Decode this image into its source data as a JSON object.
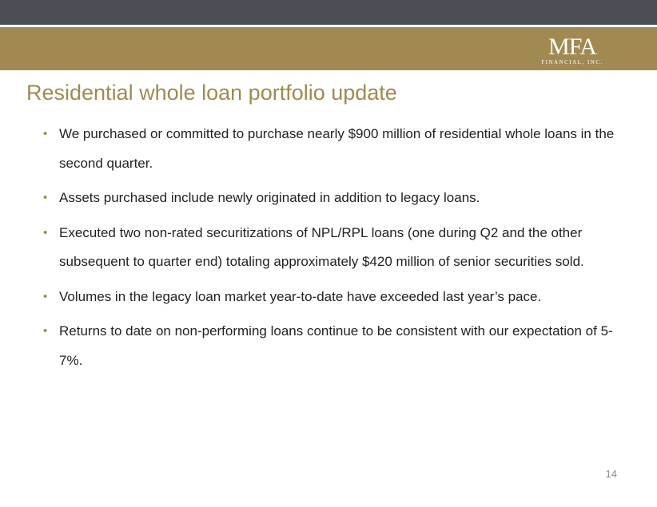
{
  "header": {
    "logo_main": "MFA",
    "logo_sub": "FINANCIAL, INC."
  },
  "slide": {
    "title": "Residential whole loan portfolio update",
    "bullets": [
      "We purchased or committed to purchase nearly $900 million of residential whole loans in the second quarter.",
      "Assets purchased include newly originated in addition to legacy loans.",
      "Executed two non-rated securitizations of NPL/RPL loans (one during Q2 and the other subsequent to quarter end) totaling approximately $420 million of senior securities sold.",
      "Volumes in the legacy loan market year-to-date have exceeded last year’s pace.",
      "Returns to date on non-performing loans continue to be consistent with our expectation of 5-7%."
    ],
    "bullet_glyph": "•",
    "page_number": "14"
  },
  "colors": {
    "top_bar": "#4b4f53",
    "gold": "#a08a52",
    "text": "#222222"
  }
}
